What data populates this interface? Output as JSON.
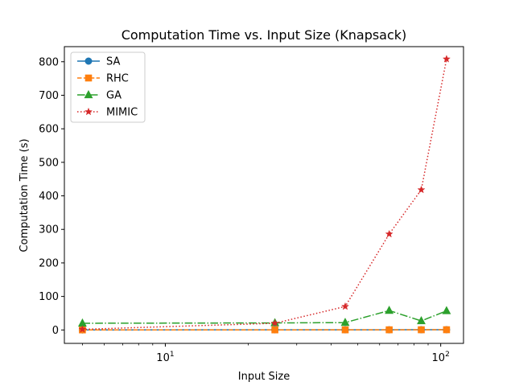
{
  "chart_data": {
    "type": "line",
    "title": "Computation Time vs. Input Size (Knapsack)",
    "xlabel": "Input Size",
    "ylabel": "Computation Time (s)",
    "xscale": "log",
    "xlim": [
      4.3,
      121
    ],
    "ylim": [
      -40,
      845
    ],
    "grid": false,
    "legend_position": "top-left",
    "x": [
      5,
      25,
      45,
      65,
      85,
      105
    ],
    "x_ticks": [
      {
        "value": 10,
        "base": "10",
        "exp": "1"
      },
      {
        "value": 100,
        "base": "10",
        "exp": "2"
      }
    ],
    "y_ticks": [
      0,
      100,
      200,
      300,
      400,
      500,
      600,
      700,
      800
    ],
    "series": [
      {
        "name": "SA",
        "color": "#1f77b4",
        "marker": "circle",
        "linestyle": "solid",
        "values": [
          0.3,
          0.4,
          0.5,
          0.6,
          0.7,
          0.8
        ]
      },
      {
        "name": "RHC",
        "color": "#ff7f0e",
        "marker": "square",
        "linestyle": "dashed",
        "values": [
          0.2,
          0.3,
          0.4,
          0.5,
          0.6,
          0.7
        ]
      },
      {
        "name": "GA",
        "color": "#2ca02c",
        "marker": "triangle",
        "linestyle": "dashdot",
        "values": [
          20,
          21,
          22,
          58,
          27,
          57
        ]
      },
      {
        "name": "MIMIC",
        "color": "#d62728",
        "marker": "star",
        "linestyle": "dotted",
        "values": [
          2,
          20,
          70,
          286,
          418,
          808
        ]
      }
    ]
  }
}
